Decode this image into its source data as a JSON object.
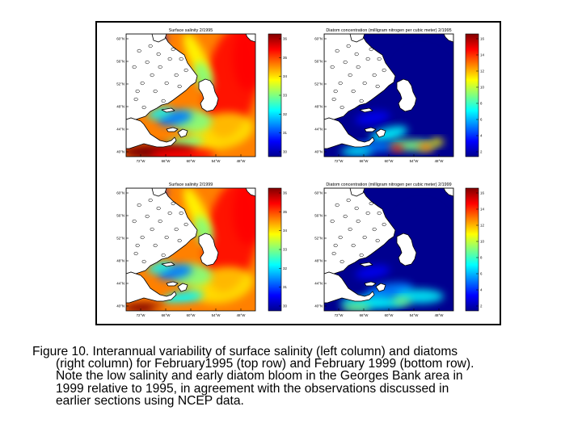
{
  "panels": [
    {
      "id": "salinity-1995",
      "title": "Surface salinity 2/1995",
      "variable": "salinity",
      "x_ticks": [
        "72°W",
        "66°W",
        "60°W",
        "54°W",
        "48°W"
      ],
      "y_ticks": [
        "60°N",
        "56°N",
        "52°N",
        "48°N",
        "44°N",
        "40°N"
      ],
      "colorbar_ticks": [
        "36",
        "35",
        "34",
        "33",
        "32",
        "31",
        "30"
      ]
    },
    {
      "id": "diatom-1995",
      "title": "Diatom concentration (milligram nitrogen per cubic meter) 2/1995",
      "variable": "diatom",
      "x_ticks": [
        "72°W",
        "66°W",
        "60°W",
        "54°W",
        "48°W"
      ],
      "y_ticks": [
        "60°N",
        "56°N",
        "52°N",
        "48°N",
        "44°N",
        "40°N"
      ],
      "colorbar_ticks": [
        "16",
        "14",
        "12",
        "10",
        "8",
        "6",
        "4",
        "2"
      ]
    },
    {
      "id": "salinity-1999",
      "title": "Surface salinity 2/1999",
      "variable": "salinity",
      "x_ticks": [
        "72°W",
        "66°W",
        "60°W",
        "54°W",
        "48°W"
      ],
      "y_ticks": [
        "60°N",
        "56°N",
        "52°N",
        "48°N",
        "44°N",
        "40°N"
      ],
      "colorbar_ticks": [
        "36",
        "35",
        "34",
        "33",
        "32",
        "31",
        "30"
      ]
    },
    {
      "id": "diatom-1999",
      "title": "Diatom concentration (milligram nitrogen per cubic meter) 2/1999",
      "variable": "diatom",
      "x_ticks": [
        "72°W",
        "66°W",
        "60°W",
        "54°W",
        "48°W"
      ],
      "y_ticks": [
        "60°N",
        "56°N",
        "52°N",
        "48°N",
        "44°N",
        "40°N"
      ],
      "colorbar_ticks": [
        "16",
        "14",
        "12",
        "10",
        "8",
        "6",
        "4",
        "2"
      ]
    }
  ],
  "caption": {
    "lines": [
      "Figure 10. Interannual variability of surface salinity (left column) and diatoms",
      "(right column) for February1995 (top row) and February 1999 (bottom row).",
      "Note the low salinity and early diatom bloom in the Georges Bank area in",
      "1999 relative to 1995, in agreement with the observations discussed in",
      "earlier sections using NCEP data."
    ]
  },
  "colors": {
    "jet": [
      "#00008f",
      "#0000ff",
      "#0080ff",
      "#00ffff",
      "#80ff80",
      "#ffff00",
      "#ff8000",
      "#ff0000",
      "#800000"
    ],
    "land": "#ffffff",
    "coast": "#000000"
  }
}
